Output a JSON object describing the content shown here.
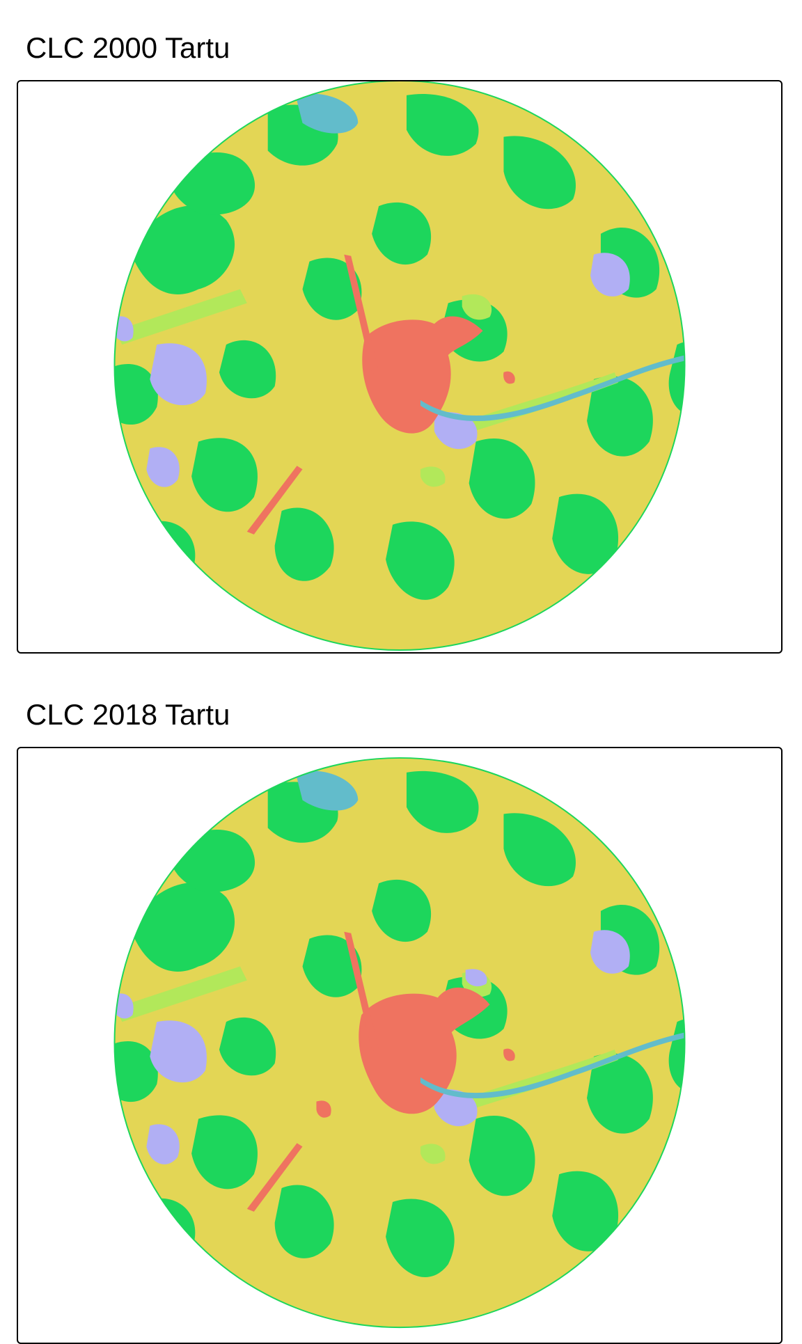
{
  "maps": [
    {
      "title": "CLC 2000 Tartu"
    },
    {
      "title": "CLC 2018 Tartu"
    }
  ],
  "colors": {
    "agriculture": "#e3d655",
    "forest": "#1dd65c",
    "herbaceous": "#b2e85a",
    "urban": "#ef7360",
    "wetland": "#b1aff4",
    "water": "#62bccb",
    "background": "#ffffff",
    "frame": "#000000"
  }
}
